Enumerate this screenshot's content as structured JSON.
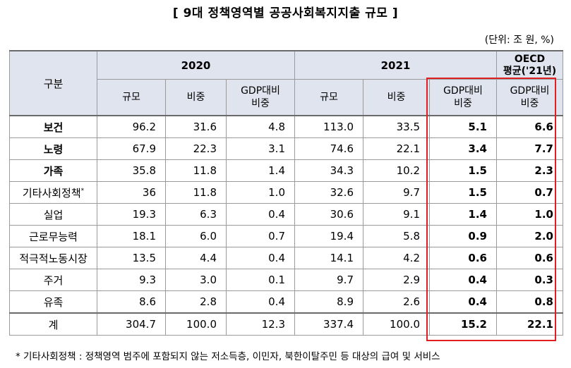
{
  "title": "[ 9대 정책영역별 공공사회복지지출 규모 ]",
  "unit": "(단위: 조 원, %)",
  "header": {
    "category": "구분",
    "year2020": "2020",
    "year2021": "2021",
    "oecd_line1": "OECD",
    "oecd_line2": "평균('21년)",
    "scale": "규모",
    "share": "비중",
    "gdp_line1": "GDP대비",
    "gdp_line2": "비중"
  },
  "rows": [
    {
      "label": "보건",
      "v2020_scale": "96.2",
      "v2020_share": "31.6",
      "v2020_gdp": "4.8",
      "v2021_scale": "113.0",
      "v2021_share": "33.5",
      "v2021_gdp": "5.1",
      "oecd_gdp": "6.6"
    },
    {
      "label": "노령",
      "v2020_scale": "67.9",
      "v2020_share": "22.3",
      "v2020_gdp": "3.1",
      "v2021_scale": "74.6",
      "v2021_share": "22.1",
      "v2021_gdp": "3.4",
      "oecd_gdp": "7.7"
    },
    {
      "label": "가족",
      "v2020_scale": "35.8",
      "v2020_share": "11.8",
      "v2020_gdp": "1.4",
      "v2021_scale": "34.3",
      "v2021_share": "10.2",
      "v2021_gdp": "1.5",
      "oecd_gdp": "2.3"
    },
    {
      "label": "기타사회정책",
      "label_mark": "*",
      "v2020_scale": "36",
      "v2020_share": "11.8",
      "v2020_gdp": "1.0",
      "v2021_scale": "32.6",
      "v2021_share": "9.7",
      "v2021_gdp": "1.5",
      "oecd_gdp": "0.7"
    },
    {
      "label": "실업",
      "v2020_scale": "19.3",
      "v2020_share": "6.3",
      "v2020_gdp": "0.4",
      "v2021_scale": "30.6",
      "v2021_share": "9.1",
      "v2021_gdp": "1.4",
      "oecd_gdp": "1.0"
    },
    {
      "label": "근로무능력",
      "v2020_scale": "18.1",
      "v2020_share": "6.0",
      "v2020_gdp": "0.7",
      "v2021_scale": "19.4",
      "v2021_share": "5.8",
      "v2021_gdp": "0.9",
      "oecd_gdp": "2.0"
    },
    {
      "label": "적극적노동시장",
      "v2020_scale": "13.5",
      "v2020_share": "4.4",
      "v2020_gdp": "0.4",
      "v2021_scale": "14.1",
      "v2021_share": "4.2",
      "v2021_gdp": "0.6",
      "oecd_gdp": "0.6"
    },
    {
      "label": "주거",
      "v2020_scale": "9.3",
      "v2020_share": "3.0",
      "v2020_gdp": "0.1",
      "v2021_scale": "9.7",
      "v2021_share": "2.9",
      "v2021_gdp": "0.4",
      "oecd_gdp": "0.3"
    },
    {
      "label": "유족",
      "v2020_scale": "8.6",
      "v2020_share": "2.8",
      "v2020_gdp": "0.4",
      "v2021_scale": "8.9",
      "v2021_share": "2.6",
      "v2021_gdp": "0.4",
      "oecd_gdp": "0.8"
    }
  ],
  "total": {
    "label": "계",
    "v2020_scale": "304.7",
    "v2020_share": "100.0",
    "v2020_gdp": "12.3",
    "v2021_scale": "337.4",
    "v2021_share": "100.0",
    "v2021_gdp": "15.2",
    "oecd_gdp": "22.1"
  },
  "footnote": "* 기타사회정책 : 정책영역 범주에 포함되지 않는 저소득층, 이민자, 북한이탈주민 등 대상의 급여 및 서비스",
  "colors": {
    "header_bg": "#dfe4ef",
    "highlight_border": "#e02020",
    "grid": "#9a9a9a"
  }
}
